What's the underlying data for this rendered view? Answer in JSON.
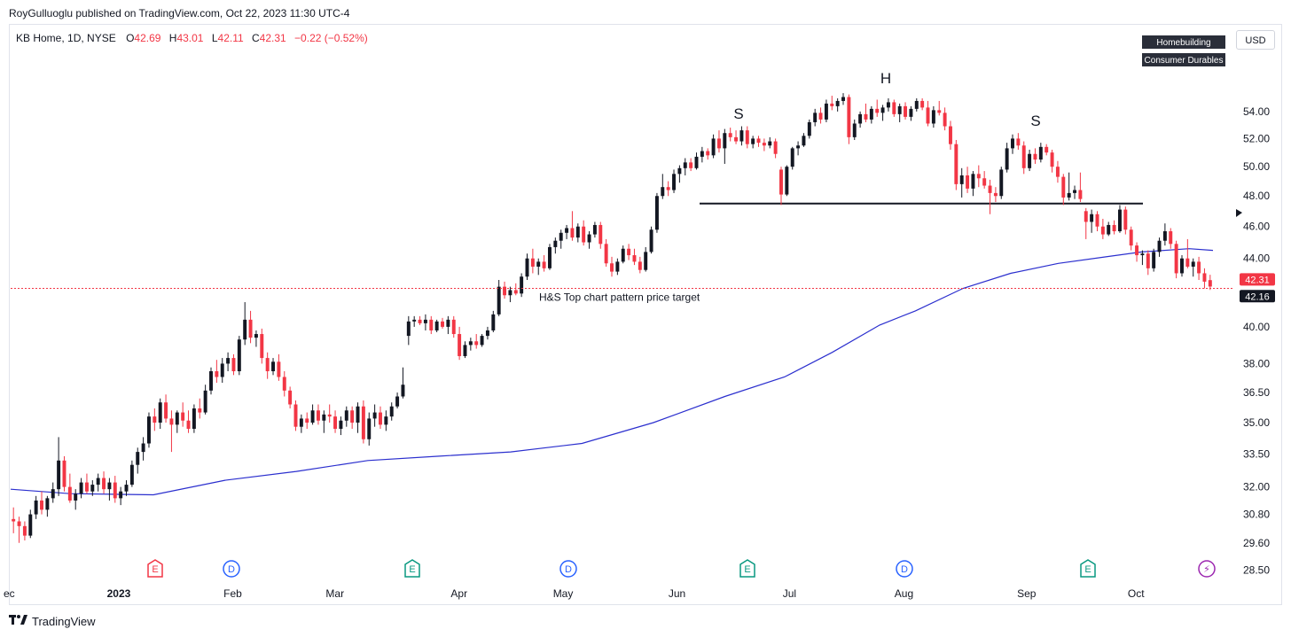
{
  "publish_line": "RoyGulluoglu published on TradingView.com, Oct 22, 2023 11:30 UTC-4",
  "header": {
    "symbol": "KB Home, 1D, NYSE",
    "open_label": "O",
    "open": "42.69",
    "high_label": "H",
    "high": "43.01",
    "low_label": "L",
    "low": "42.11",
    "close_label": "C",
    "close": "42.31",
    "change": "−0.22 (−0.52%)"
  },
  "currency_button": "USD",
  "tags": [
    "Homebuilding",
    "Consumer Durables"
  ],
  "branding": "TradingView",
  "colors": {
    "up": "#131722",
    "down": "#f23645",
    "ma": "#2b2fce",
    "last_price_bg": "#f23645",
    "prev_close_bg": "#131722"
  },
  "chart_data": {
    "type": "candlestick",
    "y_axis": {
      "scale": "log",
      "ticks": [
        "54.00",
        "52.00",
        "50.00",
        "48.00",
        "46.00",
        "44.00",
        "40.00",
        "38.00",
        "36.50",
        "35.00",
        "33.50",
        "32.00",
        "30.80",
        "29.60",
        "28.50"
      ],
      "range": [
        28.2,
        57.5
      ]
    },
    "x_axis": {
      "labels": [
        "ec",
        "2023",
        "Feb",
        "Mar",
        "Apr",
        "May",
        "Jun",
        "Jul",
        "Aug",
        "Sep",
        "Oct"
      ],
      "bold_labels": [
        "2023"
      ]
    },
    "price_labels": {
      "last": "42.31",
      "other": "42.16"
    },
    "annotations": {
      "pattern_letters": [
        "S",
        "H",
        "S"
      ],
      "neckline_price": 47.5,
      "target_price": 42.2,
      "target_text": "H&S Top chart pattern price target"
    },
    "events": [
      {
        "type": "E",
        "color": "#f23645"
      },
      {
        "type": "D",
        "color": "#2962ff"
      },
      {
        "type": "E",
        "color": "#089981"
      },
      {
        "type": "D",
        "color": "#2962ff"
      },
      {
        "type": "E",
        "color": "#089981"
      },
      {
        "type": "D",
        "color": "#2962ff"
      },
      {
        "type": "E",
        "color": "#089981"
      },
      {
        "type": "flash",
        "color": "#9c27b0"
      }
    ],
    "moving_average": {
      "name": "",
      "points": [
        [
          0,
          31.9
        ],
        [
          25,
          31.7
        ],
        [
          60,
          31.65
        ],
        [
          90,
          32.3
        ],
        [
          120,
          32.7
        ],
        [
          150,
          33.2
        ],
        [
          180,
          33.4
        ],
        [
          210,
          33.6
        ],
        [
          240,
          34.0
        ],
        [
          270,
          35.0
        ],
        [
          300,
          36.3
        ],
        [
          325,
          37.3
        ],
        [
          345,
          38.6
        ],
        [
          365,
          40.1
        ],
        [
          380,
          40.9
        ],
        [
          400,
          42.2
        ],
        [
          420,
          43.1
        ],
        [
          440,
          43.7
        ],
        [
          460,
          44.1
        ],
        [
          475,
          44.4
        ],
        [
          495,
          44.6
        ],
        [
          505,
          44.5
        ]
      ]
    },
    "candles_pct_x": "series index spaced evenly",
    "candles": [
      [
        30.6,
        31.1,
        30.0,
        30.5
      ],
      [
        30.5,
        30.7,
        29.6,
        30.3
      ],
      [
        30.3,
        30.5,
        29.7,
        29.9
      ],
      [
        29.9,
        31.0,
        29.8,
        30.8
      ],
      [
        30.8,
        31.6,
        30.6,
        31.4
      ],
      [
        31.4,
        31.8,
        30.8,
        31.0
      ],
      [
        31.0,
        31.6,
        30.7,
        31.5
      ],
      [
        31.5,
        32.2,
        31.3,
        31.9
      ],
      [
        31.9,
        34.3,
        31.6,
        33.2
      ],
      [
        33.2,
        33.4,
        31.8,
        32.0
      ],
      [
        32.0,
        32.6,
        31.3,
        31.4
      ],
      [
        31.4,
        31.9,
        31.0,
        31.7
      ],
      [
        31.7,
        32.4,
        31.5,
        32.2
      ],
      [
        32.2,
        32.6,
        31.7,
        31.8
      ],
      [
        31.8,
        32.3,
        31.6,
        32.1
      ],
      [
        32.1,
        32.6,
        31.8,
        32.4
      ],
      [
        32.4,
        32.7,
        31.7,
        31.9
      ],
      [
        31.9,
        32.4,
        31.4,
        32.2
      ],
      [
        32.2,
        32.5,
        31.3,
        31.5
      ],
      [
        31.5,
        32.0,
        31.2,
        31.8
      ],
      [
        31.8,
        32.3,
        31.6,
        32.1
      ],
      [
        32.1,
        33.2,
        32.0,
        33.0
      ],
      [
        33.0,
        33.8,
        32.6,
        33.6
      ],
      [
        33.6,
        34.3,
        33.2,
        34.0
      ],
      [
        34.0,
        35.5,
        33.8,
        35.3
      ],
      [
        35.3,
        35.7,
        34.6,
        35.0
      ],
      [
        35.0,
        36.2,
        34.7,
        36.0
      ],
      [
        36.0,
        36.4,
        35.0,
        35.2
      ],
      [
        35.2,
        35.6,
        33.6,
        34.9
      ],
      [
        34.9,
        35.6,
        34.5,
        35.5
      ],
      [
        35.5,
        36.0,
        34.8,
        35.1
      ],
      [
        35.1,
        35.6,
        34.5,
        34.7
      ],
      [
        34.7,
        35.9,
        34.5,
        35.7
      ],
      [
        35.7,
        36.2,
        35.2,
        35.5
      ],
      [
        35.5,
        36.9,
        35.4,
        36.6
      ],
      [
        36.6,
        37.8,
        36.4,
        37.6
      ],
      [
        37.6,
        38.2,
        37.0,
        37.3
      ],
      [
        37.3,
        38.3,
        37.0,
        38.0
      ],
      [
        38.0,
        38.6,
        37.6,
        38.3
      ],
      [
        38.3,
        38.5,
        37.4,
        37.6
      ],
      [
        37.6,
        39.5,
        37.4,
        39.3
      ],
      [
        39.3,
        41.4,
        39.0,
        40.4
      ],
      [
        40.4,
        40.9,
        39.1,
        39.4
      ],
      [
        39.4,
        39.8,
        38.9,
        39.6
      ],
      [
        39.6,
        39.9,
        38.0,
        38.3
      ],
      [
        38.3,
        38.6,
        37.2,
        37.6
      ],
      [
        37.6,
        38.3,
        37.4,
        38.1
      ],
      [
        38.1,
        38.5,
        37.1,
        37.3
      ],
      [
        37.3,
        37.6,
        36.3,
        36.6
      ],
      [
        36.6,
        36.8,
        35.7,
        35.9
      ],
      [
        35.9,
        36.1,
        34.6,
        34.8
      ],
      [
        34.8,
        35.4,
        34.5,
        35.2
      ],
      [
        35.2,
        35.5,
        34.7,
        35.0
      ],
      [
        35.0,
        35.9,
        34.9,
        35.6
      ],
      [
        35.6,
        35.9,
        34.9,
        35.1
      ],
      [
        35.1,
        35.6,
        34.5,
        35.4
      ],
      [
        35.4,
        35.9,
        35.0,
        35.3
      ],
      [
        35.3,
        35.6,
        34.5,
        34.7
      ],
      [
        34.7,
        35.3,
        34.4,
        35.1
      ],
      [
        35.1,
        35.8,
        34.8,
        35.6
      ],
      [
        35.6,
        35.8,
        34.7,
        35.0
      ],
      [
        35.0,
        36.0,
        34.5,
        35.8
      ],
      [
        35.8,
        36.1,
        34.0,
        34.2
      ],
      [
        34.2,
        35.5,
        33.9,
        35.2
      ],
      [
        35.2,
        35.9,
        34.8,
        35.5
      ],
      [
        35.5,
        35.8,
        34.7,
        34.9
      ],
      [
        34.9,
        35.6,
        34.6,
        35.3
      ],
      [
        35.3,
        36.0,
        35.1,
        35.8
      ],
      [
        35.8,
        36.5,
        35.7,
        36.3
      ],
      [
        36.3,
        37.8,
        36.2,
        36.9
      ],
      [
        39.5,
        40.6,
        39.0,
        40.3
      ],
      [
        40.3,
        40.6,
        40.0,
        40.4
      ],
      [
        40.4,
        40.6,
        40.1,
        40.2
      ],
      [
        40.2,
        40.7,
        39.8,
        40.4
      ],
      [
        40.4,
        40.6,
        39.6,
        39.8
      ],
      [
        39.8,
        40.4,
        39.7,
        40.3
      ],
      [
        40.3,
        40.5,
        39.9,
        40.0
      ],
      [
        40.0,
        40.6,
        39.6,
        40.4
      ],
      [
        40.4,
        40.6,
        39.4,
        39.6
      ],
      [
        39.6,
        40.0,
        38.2,
        38.4
      ],
      [
        38.4,
        39.2,
        38.3,
        39.0
      ],
      [
        39.0,
        39.4,
        38.7,
        39.2
      ],
      [
        39.2,
        39.6,
        38.8,
        39.0
      ],
      [
        39.0,
        39.6,
        38.9,
        39.5
      ],
      [
        39.5,
        40.0,
        39.3,
        39.8
      ],
      [
        39.8,
        40.9,
        39.7,
        40.7
      ],
      [
        40.7,
        42.7,
        40.6,
        42.3
      ],
      [
        42.3,
        42.6,
        41.6,
        41.8
      ],
      [
        41.8,
        42.3,
        41.4,
        42.1
      ],
      [
        42.1,
        42.5,
        41.8,
        41.9
      ],
      [
        41.9,
        43.1,
        41.7,
        42.9
      ],
      [
        42.9,
        44.3,
        42.7,
        44.0
      ],
      [
        44.0,
        44.6,
        43.1,
        43.5
      ],
      [
        43.5,
        44.0,
        43.0,
        43.8
      ],
      [
        43.8,
        44.2,
        43.2,
        43.4
      ],
      [
        43.4,
        44.9,
        43.3,
        44.7
      ],
      [
        44.7,
        45.3,
        44.3,
        45.1
      ],
      [
        45.1,
        45.8,
        44.6,
        45.6
      ],
      [
        45.6,
        46.1,
        45.2,
        45.9
      ],
      [
        45.9,
        47.0,
        45.1,
        45.3
      ],
      [
        45.3,
        46.2,
        45.0,
        46.0
      ],
      [
        46.0,
        46.4,
        44.8,
        45.0
      ],
      [
        45.0,
        45.7,
        44.6,
        45.5
      ],
      [
        45.5,
        46.3,
        45.3,
        46.1
      ],
      [
        46.1,
        46.3,
        44.6,
        44.9
      ],
      [
        44.9,
        45.2,
        43.5,
        43.7
      ],
      [
        43.7,
        44.1,
        42.9,
        43.2
      ],
      [
        43.2,
        44.0,
        43.0,
        43.8
      ],
      [
        43.8,
        44.8,
        43.7,
        44.6
      ],
      [
        44.6,
        44.9,
        43.9,
        44.2
      ],
      [
        44.2,
        44.6,
        43.6,
        43.8
      ],
      [
        43.8,
        44.1,
        43.1,
        43.3
      ],
      [
        43.3,
        44.7,
        43.2,
        44.4
      ],
      [
        44.4,
        46.0,
        44.3,
        45.8
      ],
      [
        45.8,
        48.2,
        45.6,
        48.0
      ],
      [
        48.0,
        49.5,
        47.8,
        48.6
      ],
      [
        48.6,
        49.0,
        48.0,
        48.4
      ],
      [
        48.4,
        49.8,
        48.2,
        49.5
      ],
      [
        49.5,
        50.1,
        48.9,
        49.9
      ],
      [
        49.9,
        50.6,
        49.4,
        50.3
      ],
      [
        50.3,
        50.6,
        49.7,
        49.9
      ],
      [
        49.9,
        51.0,
        49.8,
        50.7
      ],
      [
        50.7,
        51.4,
        50.3,
        51.1
      ],
      [
        51.1,
        51.3,
        50.5,
        50.8
      ],
      [
        50.8,
        52.3,
        50.6,
        52.0
      ],
      [
        52.0,
        52.6,
        51.0,
        51.3
      ],
      [
        51.3,
        52.7,
        50.2,
        52.4
      ],
      [
        52.4,
        52.8,
        51.8,
        52.1
      ],
      [
        52.1,
        52.6,
        51.6,
        51.8
      ],
      [
        51.8,
        52.9,
        51.5,
        52.6
      ],
      [
        52.6,
        52.9,
        51.3,
        51.6
      ],
      [
        51.6,
        52.2,
        51.3,
        52.0
      ],
      [
        52.0,
        52.2,
        51.4,
        51.7
      ],
      [
        51.7,
        52.0,
        51.1,
        51.5
      ],
      [
        51.5,
        52.1,
        51.3,
        51.8
      ],
      [
        51.8,
        52.0,
        50.6,
        50.9
      ],
      [
        49.8,
        50.0,
        47.4,
        48.1
      ],
      [
        48.1,
        50.1,
        48.0,
        50.0
      ],
      [
        50.0,
        51.4,
        49.8,
        51.3
      ],
      [
        51.3,
        51.8,
        50.8,
        51.5
      ],
      [
        51.5,
        52.4,
        51.4,
        52.2
      ],
      [
        52.2,
        53.4,
        52.0,
        53.2
      ],
      [
        53.2,
        54.2,
        52.9,
        53.9
      ],
      [
        53.9,
        54.3,
        53.1,
        53.4
      ],
      [
        53.4,
        54.9,
        53.2,
        54.6
      ],
      [
        54.6,
        55.2,
        54.1,
        54.4
      ],
      [
        54.4,
        55.0,
        54.0,
        54.8
      ],
      [
        54.8,
        55.4,
        54.5,
        55.1
      ],
      [
        55.1,
        55.3,
        51.6,
        52.1
      ],
      [
        52.1,
        53.4,
        51.9,
        53.1
      ],
      [
        53.1,
        54.0,
        52.8,
        53.8
      ],
      [
        53.8,
        54.6,
        53.2,
        53.4
      ],
      [
        53.4,
        54.4,
        53.1,
        54.2
      ],
      [
        54.2,
        54.9,
        53.6,
        53.9
      ],
      [
        53.9,
        54.5,
        53.3,
        54.3
      ],
      [
        54.3,
        55.0,
        54.0,
        54.7
      ],
      [
        54.7,
        54.9,
        53.6,
        53.8
      ],
      [
        53.8,
        54.6,
        53.2,
        54.4
      ],
      [
        54.4,
        54.7,
        53.4,
        53.6
      ],
      [
        53.6,
        54.4,
        53.3,
        54.2
      ],
      [
        54.2,
        55.0,
        54.0,
        54.8
      ],
      [
        54.8,
        55.0,
        54.1,
        54.3
      ],
      [
        54.3,
        54.8,
        52.9,
        53.1
      ],
      [
        53.1,
        54.4,
        52.8,
        54.1
      ],
      [
        54.1,
        54.8,
        53.7,
        53.9
      ],
      [
        53.9,
        54.3,
        52.6,
        52.9
      ],
      [
        52.9,
        53.3,
        51.2,
        51.6
      ],
      [
        51.6,
        51.9,
        48.4,
        48.8
      ],
      [
        48.8,
        49.9,
        47.9,
        49.4
      ],
      [
        49.4,
        50.0,
        48.2,
        48.5
      ],
      [
        48.5,
        49.7,
        48.0,
        49.5
      ],
      [
        49.5,
        50.1,
        48.6,
        49.2
      ],
      [
        49.2,
        49.7,
        48.5,
        48.7
      ],
      [
        48.7,
        49.1,
        46.8,
        48.2
      ],
      [
        48.2,
        48.6,
        47.6,
        48.0
      ],
      [
        48.0,
        50.0,
        47.8,
        49.8
      ],
      [
        49.8,
        51.7,
        49.6,
        51.3
      ],
      [
        51.3,
        52.3,
        50.9,
        52.0
      ],
      [
        52.0,
        52.4,
        51.2,
        51.5
      ],
      [
        51.5,
        51.8,
        49.5,
        49.9
      ],
      [
        49.9,
        51.2,
        49.7,
        50.9
      ],
      [
        50.9,
        51.3,
        50.2,
        50.5
      ],
      [
        50.5,
        51.7,
        50.3,
        51.4
      ],
      [
        51.4,
        51.6,
        50.8,
        51.0
      ],
      [
        51.0,
        51.2,
        49.6,
        50.0
      ],
      [
        50.0,
        50.4,
        48.9,
        49.3
      ],
      [
        49.3,
        49.5,
        47.4,
        47.9
      ],
      [
        47.9,
        49.6,
        47.7,
        48.2
      ],
      [
        48.2,
        48.7,
        47.8,
        48.4
      ],
      [
        48.4,
        49.6,
        47.6,
        47.8
      ],
      [
        47.0,
        47.2,
        45.2,
        46.3
      ],
      [
        46.3,
        47.1,
        45.6,
        46.8
      ],
      [
        46.8,
        47.0,
        45.7,
        46.0
      ],
      [
        46.0,
        46.5,
        45.2,
        45.5
      ],
      [
        45.5,
        46.3,
        45.4,
        46.1
      ],
      [
        46.1,
        46.4,
        45.5,
        45.7
      ],
      [
        45.7,
        47.4,
        45.6,
        47.1
      ],
      [
        47.1,
        47.3,
        45.5,
        45.8
      ],
      [
        45.8,
        46.0,
        44.5,
        44.8
      ],
      [
        44.8,
        45.0,
        43.8,
        44.2
      ],
      [
        44.2,
        44.5,
        43.6,
        44.3
      ],
      [
        44.3,
        44.5,
        43.0,
        43.4
      ],
      [
        43.4,
        44.6,
        43.2,
        44.4
      ],
      [
        44.4,
        45.3,
        44.1,
        45.1
      ],
      [
        45.1,
        46.2,
        44.8,
        45.7
      ],
      [
        45.7,
        45.9,
        44.6,
        44.9
      ],
      [
        44.9,
        45.1,
        42.8,
        43.1
      ],
      [
        43.1,
        44.2,
        42.9,
        44.0
      ],
      [
        44.0,
        45.2,
        43.4,
        43.5
      ],
      [
        43.5,
        44.0,
        42.9,
        43.8
      ],
      [
        43.8,
        44.1,
        42.7,
        43.1
      ],
      [
        43.1,
        43.4,
        42.2,
        42.6
      ],
      [
        42.69,
        43.01,
        42.11,
        42.31
      ]
    ]
  }
}
